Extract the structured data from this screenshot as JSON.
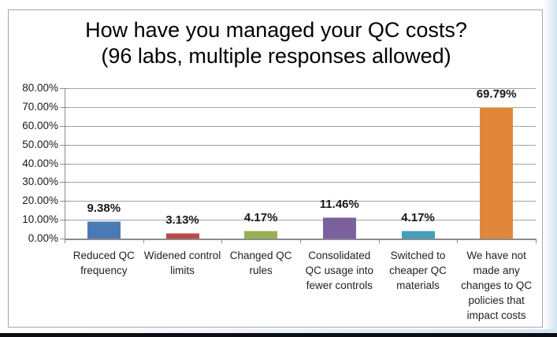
{
  "title": {
    "line1": "How have you managed your QC costs?",
    "line2": "(96 labs, multiple responses allowed)"
  },
  "chart_data": {
    "type": "bar",
    "title": "How have you managed your QC costs? (96 labs, multiple responses allowed)",
    "categories": [
      "Reduced QC frequency",
      "Widened control limits",
      "Changed QC rules",
      "Consolidated QC usage into fewer controls",
      "Switched to cheaper QC materials",
      "We have not made any changes to QC policies that impact costs"
    ],
    "values": [
      9.38,
      3.13,
      4.17,
      11.46,
      4.17,
      69.79
    ],
    "value_labels": [
      "9.38%",
      "3.13%",
      "4.17%",
      "11.46%",
      "4.17%",
      "69.79%"
    ],
    "bar_colors": [
      "#4a7ab5",
      "#b94b47",
      "#97b054",
      "#7c609e",
      "#459fb8",
      "#e0873c"
    ],
    "y_ticks": [
      "80.00%",
      "70.00%",
      "60.00%",
      "50.00%",
      "40.00%",
      "30.00%",
      "20.00%",
      "10.00%",
      "0.00%"
    ],
    "ylim": [
      0,
      80
    ],
    "xlabel": "",
    "ylabel": "",
    "grid": true,
    "legend": "none"
  },
  "colors": {
    "grid": "#a3a3a3",
    "axis": "#8c8c8c",
    "frame_border": "#a6a6a6",
    "text": "#1a1a1a",
    "slide_edge_blue": "#cfe3f3",
    "bottom_bar": "#0d0d12"
  }
}
